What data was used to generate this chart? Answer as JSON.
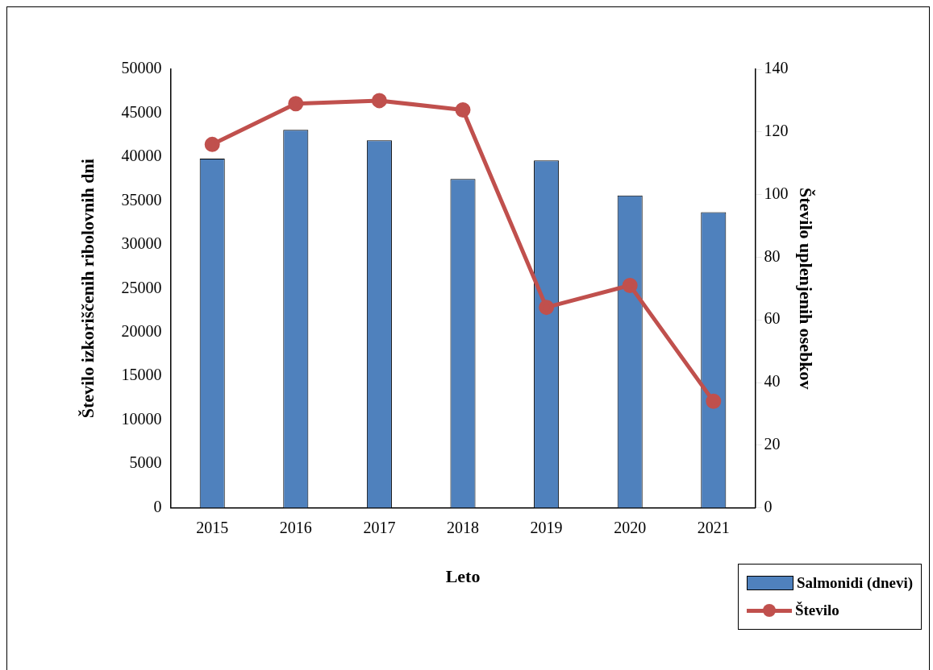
{
  "chart_data": {
    "type": "bar",
    "categories": [
      "2015",
      "2016",
      "2017",
      "2018",
      "2019",
      "2020",
      "2021"
    ],
    "xlabel": "Leto",
    "ylabel": "Število izkoriščenih ribolovnih dni",
    "y2label": "Število uplenjenih osebkov",
    "series": [
      {
        "name": "Salmonidi (dnevi)",
        "color": "#4f81bd",
        "values": [
          39800,
          43100,
          41900,
          37500,
          39600,
          35600,
          33700
        ]
      },
      {
        "name": "Število",
        "type": "line",
        "axis": "y2",
        "color": "#c0504d",
        "marker": "circle",
        "values": [
          116,
          129,
          130,
          127,
          64,
          71,
          34
        ]
      }
    ],
    "ylim": [
      0,
      50000
    ],
    "yticks": [
      0,
      5000,
      10000,
      15000,
      20000,
      25000,
      30000,
      35000,
      40000,
      45000,
      50000
    ],
    "y2lim": [
      0,
      140
    ],
    "y2ticks": [
      0,
      20,
      40,
      60,
      80,
      100,
      120,
      140
    ],
    "grid": false,
    "legend": "bottom right"
  }
}
